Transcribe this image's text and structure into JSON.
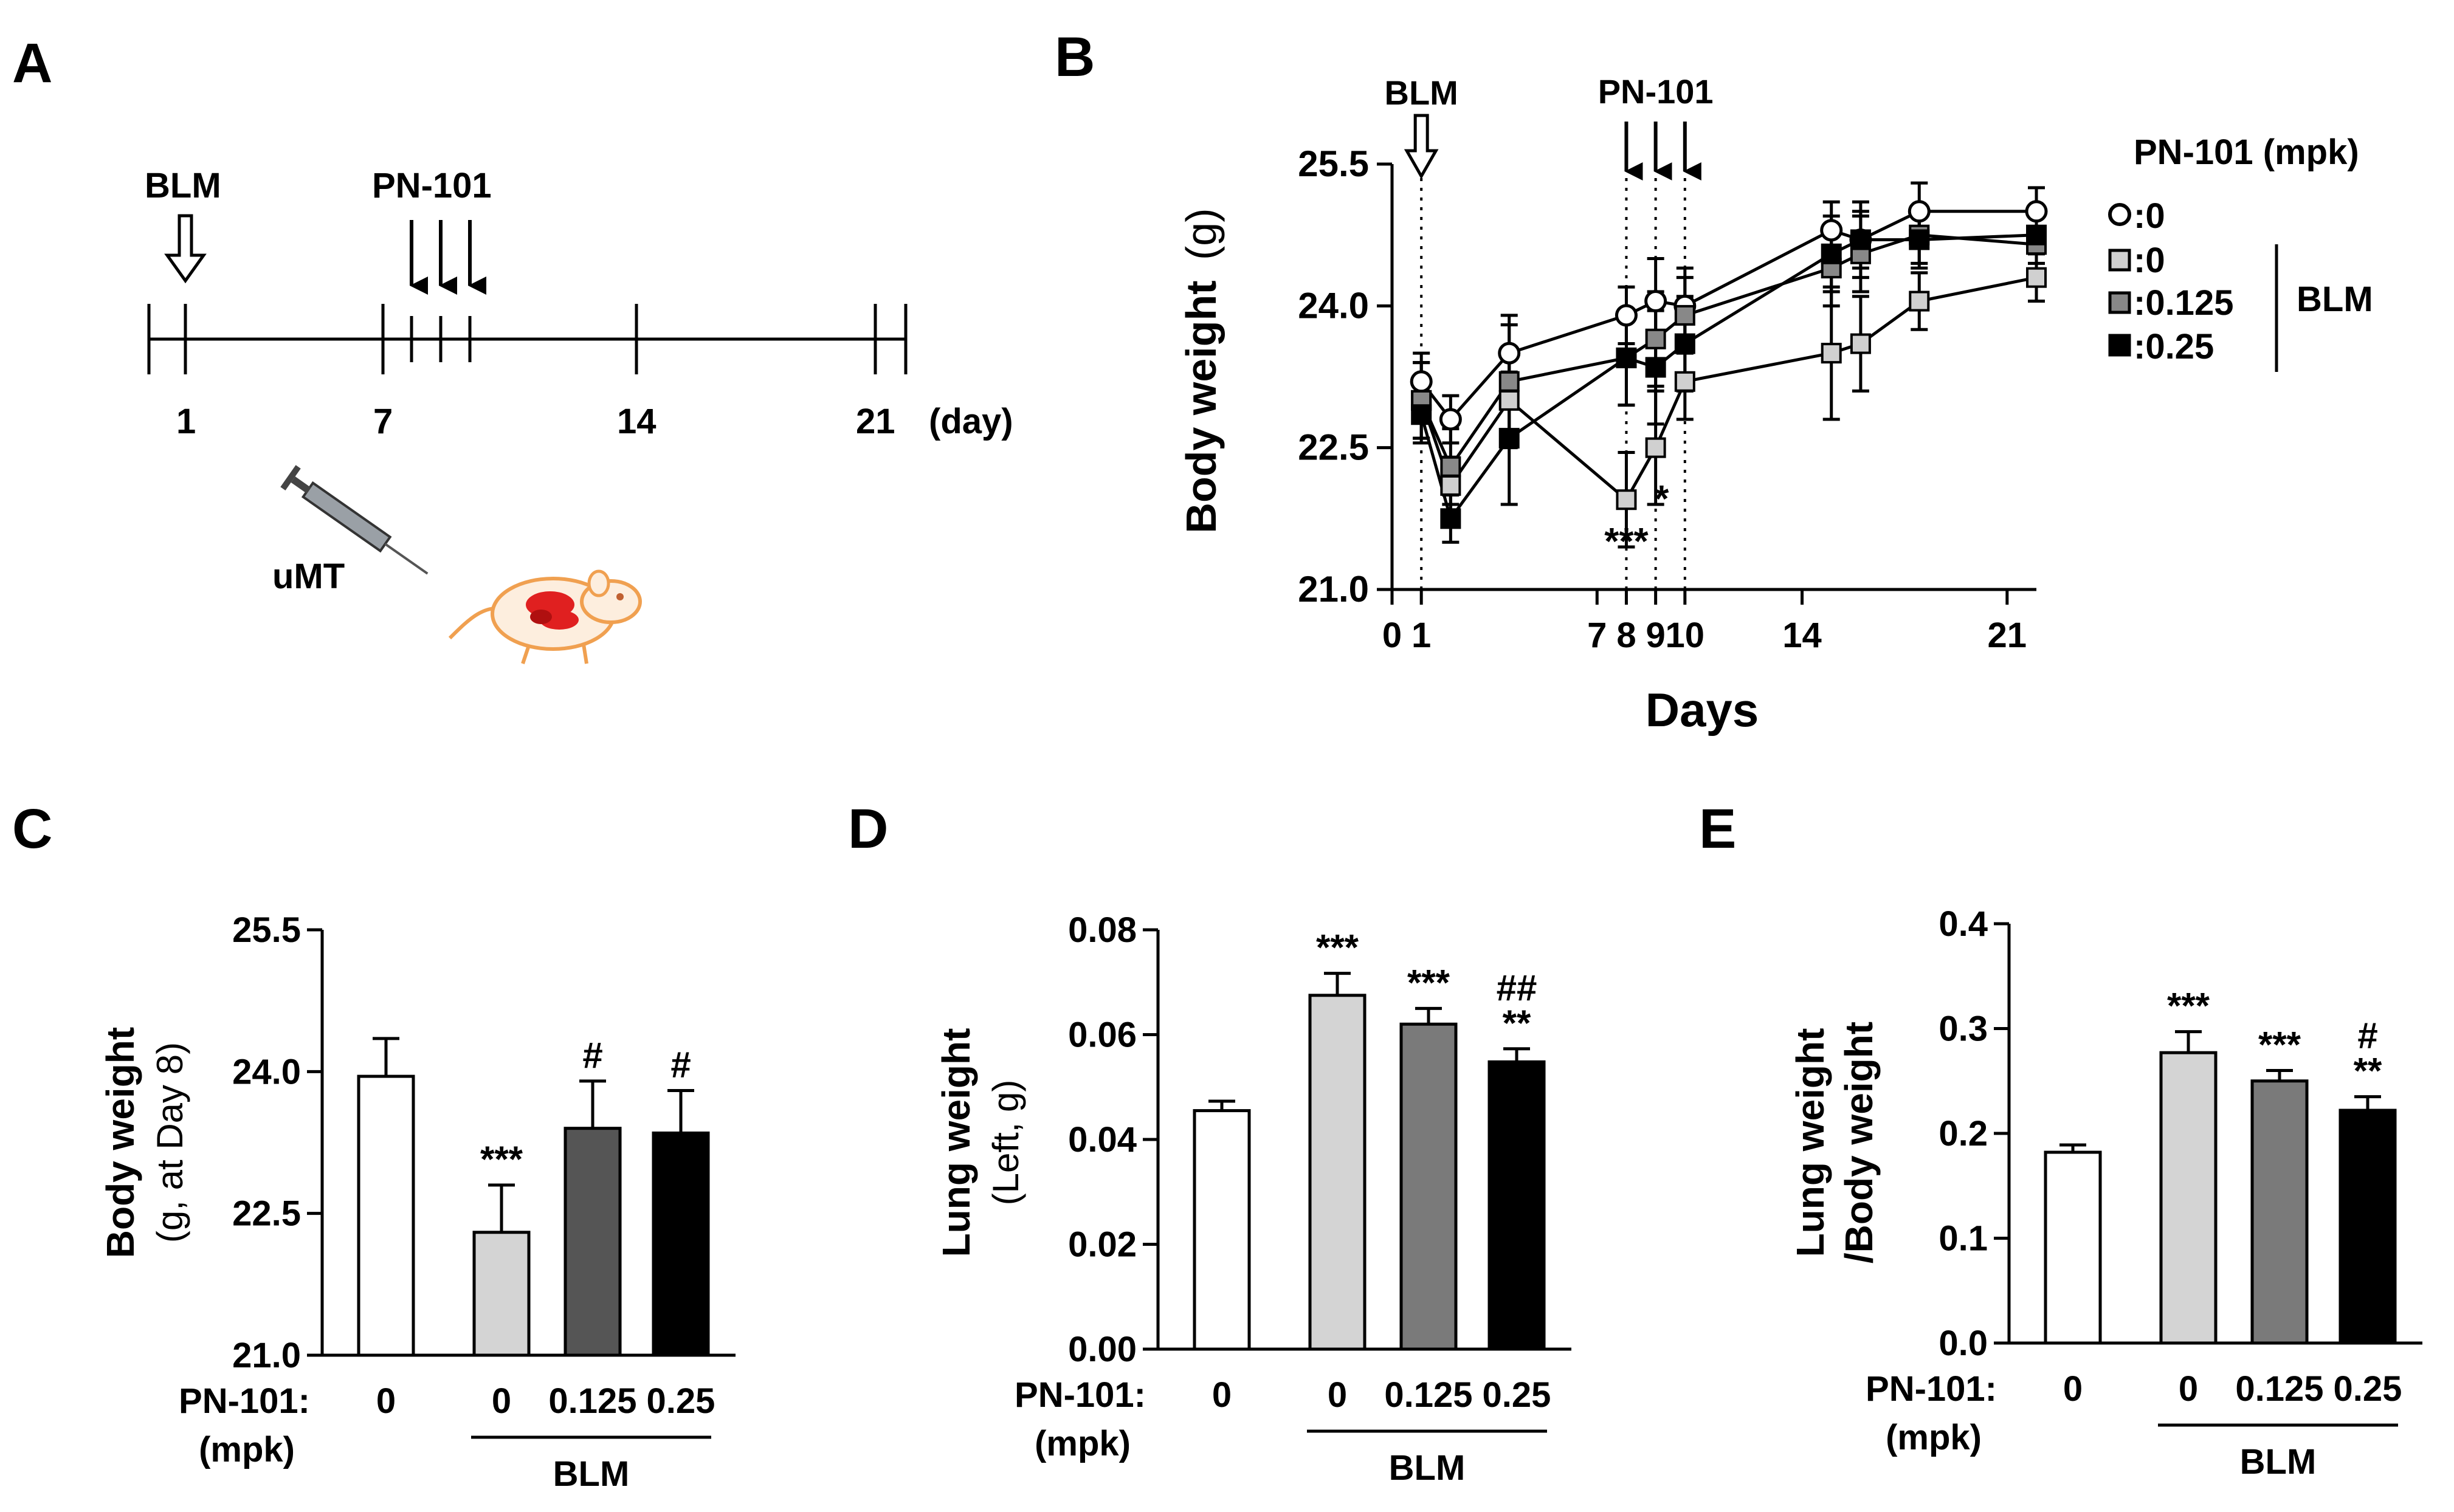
{
  "panel_labels": [
    "A",
    "B",
    "C",
    "D",
    "E"
  ],
  "timeline": {
    "blm_label": "BLM",
    "pn_label": "PN-101",
    "tick_labels": [
      "1",
      "7",
      "14",
      "21"
    ],
    "unit": "(day)",
    "umt_label": "uMT"
  },
  "chart_data": [
    {
      "id": "B",
      "type": "line",
      "title": "",
      "xlabel": "Days",
      "ylabel": "Body weight (g)",
      "ylabel_bold": "Body weight",
      "ylabel_unit": "(g)",
      "xlim": [
        0,
        22
      ],
      "ylim": [
        21.0,
        25.5
      ],
      "yticks": [
        "21.0",
        "22.5",
        "24.0",
        "25.5"
      ],
      "ytick_values": [
        21.0,
        22.5,
        24.0,
        25.5
      ],
      "xticks": [
        "0",
        "1",
        "7",
        "8",
        "9",
        "10",
        "14",
        "21"
      ],
      "xtick_values": [
        0,
        1,
        7,
        8,
        9,
        10,
        14,
        21
      ],
      "x": [
        1,
        2,
        4,
        8,
        9,
        10,
        15,
        16,
        18,
        22
      ],
      "series": [
        {
          "name": ":0",
          "marker": "circle",
          "fill": "#ffffff",
          "values": [
            23.2,
            22.8,
            23.5,
            23.9,
            24.05,
            24.0,
            24.8,
            24.7,
            25.0,
            25.0
          ],
          "errors": [
            0.3,
            0.25,
            0.4,
            0.3,
            0.45,
            0.4,
            0.3,
            0.3,
            0.3,
            0.25
          ]
        },
        {
          "name": ":0",
          "marker": "square",
          "fill": "#d0d0d0",
          "values": [
            23.0,
            22.1,
            23.0,
            21.95,
            22.5,
            23.2,
            23.5,
            23.6,
            24.05,
            24.3
          ],
          "errors": [
            0.4,
            0.3,
            0.5,
            0.5,
            0.6,
            0.4,
            0.7,
            0.5,
            0.3,
            0.25
          ]
        },
        {
          "name": ":0.125",
          "marker": "square",
          "fill": "#888888",
          "values": [
            23.0,
            22.3,
            23.2,
            23.45,
            23.65,
            23.9,
            24.4,
            24.55,
            24.75,
            24.65
          ],
          "errors": [
            0.4,
            0.4,
            0.6,
            0.5,
            0.5,
            0.4,
            0.4,
            0.4,
            0.3,
            0.3
          ]
        },
        {
          "name": ":0.25",
          "marker": "square",
          "fill": "#000000",
          "values": [
            22.85,
            21.75,
            22.6,
            23.45,
            23.35,
            23.6,
            24.55,
            24.7,
            24.7,
            24.75
          ],
          "errors": [
            0.3,
            0.25,
            0.7,
            0.5,
            0.6,
            0.5,
            0.4,
            0.4,
            0.3,
            0.3
          ]
        }
      ],
      "legend_title": "PN-101 (mpk)",
      "legend_group": "BLM",
      "arrow_blm_label": "BLM",
      "arrow_pn_label": "PN-101",
      "annotations": [
        "***",
        "*"
      ]
    },
    {
      "id": "C",
      "type": "bar",
      "ylabel_bold": "Body weight",
      "ylabel_unit": "(g, at Day 8)",
      "ylim": [
        21.0,
        25.5
      ],
      "yticks": [
        "21.0",
        "22.5",
        "24.0",
        "25.5"
      ],
      "ytick_values": [
        21.0,
        22.5,
        24.0,
        25.5
      ],
      "categories": [
        "0",
        "0",
        "0.125",
        "0.25"
      ],
      "values": [
        23.95,
        22.3,
        23.4,
        23.35
      ],
      "errors": [
        0.4,
        0.5,
        0.5,
        0.45
      ],
      "colors": [
        "#ffffff",
        "#d4d4d4",
        "#555555",
        "#000000"
      ],
      "significance": [
        "",
        "***",
        "#",
        "#"
      ],
      "row_label": "PN-101:",
      "row_unit": "(mpk)",
      "group_label": "BLM"
    },
    {
      "id": "D",
      "type": "bar",
      "ylabel_bold": "Lung weight",
      "ylabel_unit": "(Left, g)",
      "ylim": [
        0,
        0.08
      ],
      "yticks": [
        "0.00",
        "0.02",
        "0.04",
        "0.06",
        "0.08"
      ],
      "ytick_values": [
        0,
        0.02,
        0.04,
        0.06,
        0.08
      ],
      "categories": [
        "0",
        "0",
        "0.125",
        "0.25"
      ],
      "values": [
        0.0455,
        0.0675,
        0.062,
        0.0548
      ],
      "errors": [
        0.0018,
        0.0042,
        0.003,
        0.0025
      ],
      "colors": [
        "#ffffff",
        "#d4d4d4",
        "#7a7a7a",
        "#000000"
      ],
      "significance": [
        "",
        "***",
        "***",
        "##\n**"
      ],
      "row_label": "PN-101:",
      "row_unit": "(mpk)",
      "group_label": "BLM"
    },
    {
      "id": "E",
      "type": "bar",
      "ylabel_bold": "Lung weight",
      "ylabel_bold2": "/Body weight",
      "ylim": [
        0,
        0.4
      ],
      "yticks": [
        "0.0",
        "0.1",
        "0.2",
        "0.3",
        "0.4"
      ],
      "ytick_values": [
        0,
        0.1,
        0.2,
        0.3,
        0.4
      ],
      "categories": [
        "0",
        "0",
        "0.125",
        "0.25"
      ],
      "values": [
        0.182,
        0.277,
        0.25,
        0.222
      ],
      "errors": [
        0.007,
        0.02,
        0.01,
        0.013
      ],
      "colors": [
        "#ffffff",
        "#d4d4d4",
        "#7a7a7a",
        "#000000"
      ],
      "significance": [
        "",
        "***",
        "***",
        "#\n**"
      ],
      "row_label": "PN-101:",
      "row_unit": "(mpk)",
      "group_label": "BLM"
    }
  ]
}
